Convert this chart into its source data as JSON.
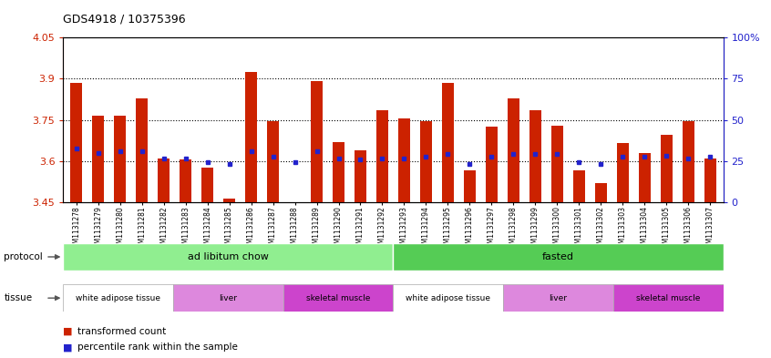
{
  "title": "GDS4918 / 10375396",
  "samples": [
    "GSM1131278",
    "GSM1131279",
    "GSM1131280",
    "GSM1131281",
    "GSM1131282",
    "GSM1131283",
    "GSM1131284",
    "GSM1131285",
    "GSM1131286",
    "GSM1131287",
    "GSM1131288",
    "GSM1131289",
    "GSM1131290",
    "GSM1131291",
    "GSM1131292",
    "GSM1131293",
    "GSM1131294",
    "GSM1131295",
    "GSM1131296",
    "GSM1131297",
    "GSM1131298",
    "GSM1131299",
    "GSM1131300",
    "GSM1131301",
    "GSM1131302",
    "GSM1131303",
    "GSM1131304",
    "GSM1131305",
    "GSM1131306",
    "GSM1131307"
  ],
  "bar_values": [
    3.885,
    3.765,
    3.765,
    3.83,
    3.61,
    3.605,
    3.575,
    3.465,
    3.925,
    3.745,
    3.445,
    3.89,
    3.67,
    3.64,
    3.785,
    3.755,
    3.745,
    3.885,
    3.565,
    3.725,
    3.83,
    3.785,
    3.73,
    3.565,
    3.52,
    3.665,
    3.63,
    3.695,
    3.745,
    3.61
  ],
  "dot_values": [
    3.645,
    3.63,
    3.635,
    3.635,
    3.61,
    3.61,
    3.595,
    3.59,
    3.635,
    3.615,
    3.595,
    3.635,
    3.61,
    3.605,
    3.61,
    3.61,
    3.615,
    3.625,
    3.59,
    3.615,
    3.625,
    3.625,
    3.625,
    3.595,
    3.59,
    3.615,
    3.615,
    3.62,
    3.61,
    3.615
  ],
  "ymin": 3.45,
  "ymax": 4.05,
  "yticks": [
    3.45,
    3.6,
    3.75,
    3.9,
    4.05
  ],
  "ytick_labels": [
    "3.45",
    "3.6",
    "3.75",
    "3.9",
    "4.05"
  ],
  "grid_lines": [
    3.6,
    3.75,
    3.9
  ],
  "right_yticks": [
    0,
    25,
    50,
    75,
    100
  ],
  "right_ytick_labels": [
    "0",
    "25",
    "50",
    "75",
    "100%"
  ],
  "bar_color": "#cc2200",
  "dot_color": "#2222cc",
  "plot_bg": "#ffffff",
  "xtick_bg": "#d8d8d8",
  "protocol_colors": [
    "#90ee90",
    "#55cc55"
  ],
  "protocol_labels": [
    "ad libitum chow",
    "fasted"
  ],
  "protocol_starts": [
    0,
    15
  ],
  "protocol_ends": [
    15,
    30
  ],
  "tissue_labels": [
    "white adipose tissue",
    "liver",
    "skeletal muscle",
    "white adipose tissue",
    "liver",
    "skeletal muscle"
  ],
  "tissue_starts": [
    0,
    5,
    10,
    15,
    20,
    25
  ],
  "tissue_ends": [
    5,
    10,
    15,
    20,
    25,
    30
  ],
  "tissue_colors": [
    "#ffffff",
    "#dd88dd",
    "#cc44cc",
    "#ffffff",
    "#dd88dd",
    "#cc44cc"
  ],
  "left_label_protocol": "protocol",
  "left_label_tissue": "tissue",
  "legend_red": "transformed count",
  "legend_blue": "percentile rank within the sample",
  "title_fontsize": 9,
  "bar_width": 0.55
}
